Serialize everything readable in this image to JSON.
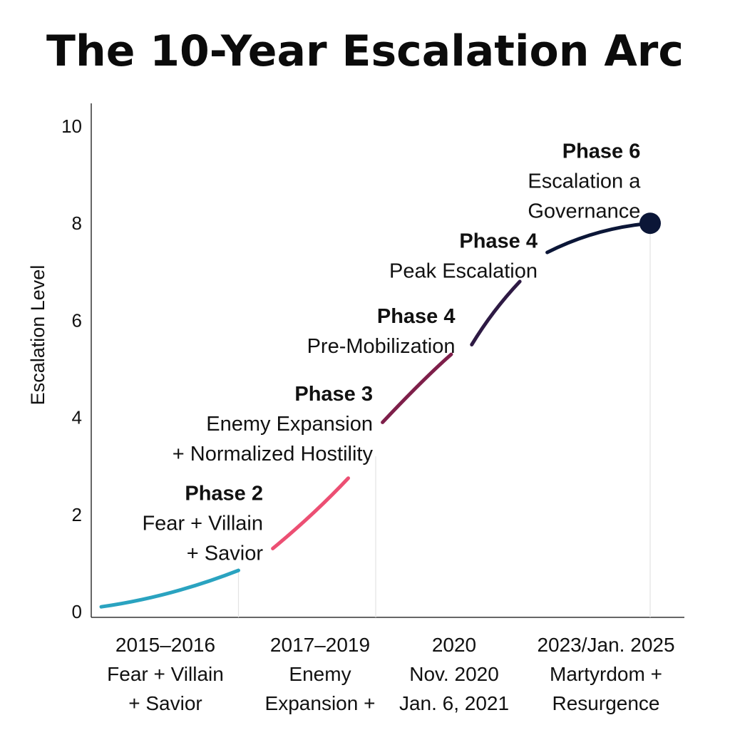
{
  "chart_data": {
    "type": "line",
    "title": "The 10-Year Escalation Arc",
    "xlabel": "",
    "ylabel": "Escalation Level",
    "ylim": [
      0,
      10
    ],
    "yticks": [
      "0",
      "2",
      "4",
      "6",
      "8",
      "10"
    ],
    "grid": false,
    "legend": "none",
    "x_categories": [
      {
        "lines": [
          "2015–2016",
          "Fear + Villain",
          "+ Savior"
        ]
      },
      {
        "lines": [
          "2017–2019",
          "Enemy",
          "Expansion +"
        ]
      },
      {
        "lines": [
          "2020",
          "Nov. 2020",
          "Jan. 6, 2021"
        ]
      },
      {
        "lines": [
          "2023/Jan. 2025",
          "Martyrdom +",
          "Resurgence"
        ]
      }
    ],
    "series": [
      {
        "segments": [
          {
            "color": "#2aa3c0",
            "points": [
              [
                0.0,
                0.1
              ],
              [
                0.5,
                0.3
              ],
              [
                1.0,
                0.85
              ]
            ]
          },
          {
            "color": "#ec4f73",
            "points": [
              [
                1.25,
                1.3
              ],
              [
                1.55,
                2.0
              ],
              [
                1.8,
                2.75
              ]
            ]
          },
          {
            "color": "#7e1f4a",
            "points": [
              [
                2.05,
                3.9
              ],
              [
                2.35,
                4.8
              ],
              [
                2.55,
                5.3
              ]
            ]
          },
          {
            "color": "#2e1a44",
            "points": [
              [
                2.7,
                5.5
              ],
              [
                2.85,
                6.2
              ],
              [
                3.05,
                6.8
              ]
            ]
          },
          {
            "color": "#0b1637",
            "points": [
              [
                3.25,
                7.4
              ],
              [
                3.6,
                7.9
              ],
              [
                4.0,
                8.0
              ]
            ]
          }
        ],
        "end_marker": {
          "x": 4.0,
          "y": 8.0,
          "color": "#0b1637"
        }
      }
    ],
    "annotations": [
      {
        "title": "Phase 2",
        "lines": [
          "Fear + Villain",
          "+ Savior"
        ],
        "x": 1.2,
        "y": 2.3
      },
      {
        "title": "Phase 3",
        "lines": [
          "Enemy Expansion",
          "+ Normalized Hostility"
        ],
        "x": 2.0,
        "y": 4.35
      },
      {
        "title": "Phase 4",
        "lines": [
          "Pre-Mobilization"
        ],
        "x": 2.6,
        "y": 5.95
      },
      {
        "title": "Phase 4",
        "lines": [
          "Peak Escalation"
        ],
        "x": 3.2,
        "y": 7.5
      },
      {
        "title": "Phase 6",
        "lines": [
          "Escalation a",
          "Governance"
        ],
        "x": 3.95,
        "y": 9.35
      }
    ]
  }
}
